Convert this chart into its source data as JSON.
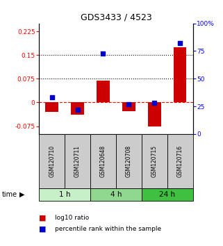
{
  "title": "GDS3433 / 4523",
  "samples": [
    "GSM120710",
    "GSM120711",
    "GSM120648",
    "GSM120708",
    "GSM120715",
    "GSM120716"
  ],
  "log10_ratio": [
    -0.03,
    -0.038,
    0.068,
    -0.028,
    -0.075,
    0.175
  ],
  "percentile_rank": [
    0.33,
    0.22,
    0.73,
    0.27,
    0.28,
    0.82
  ],
  "time_groups": [
    {
      "label": "1 h",
      "samples": [
        0,
        1
      ],
      "color": "#c8f0c8"
    },
    {
      "label": "4 h",
      "samples": [
        2,
        3
      ],
      "color": "#90d890"
    },
    {
      "label": "24 h",
      "samples": [
        4,
        5
      ],
      "color": "#40c040"
    }
  ],
  "bar_color": "#cc0000",
  "dot_color": "#0000cc",
  "left_ylim": [
    -0.1,
    0.25
  ],
  "right_ylim": [
    0,
    1.0
  ],
  "left_yticks": [
    -0.075,
    0,
    0.075,
    0.15,
    0.225
  ],
  "right_yticks": [
    0,
    0.25,
    0.5,
    0.75,
    1.0
  ],
  "right_yticklabels": [
    "0",
    "25",
    "50",
    "75",
    "100%"
  ],
  "hline_y_red": 0,
  "hline_y_dotted1": 0.075,
  "hline_y_dotted2": 0.15,
  "bar_width": 0.5,
  "dot_size": 25,
  "legend_items": [
    "log10 ratio",
    "percentile rank within the sample"
  ],
  "legend_colors": [
    "#cc0000",
    "#0000cc"
  ],
  "gsm_bg": "#cccccc",
  "title_fontsize": 9
}
